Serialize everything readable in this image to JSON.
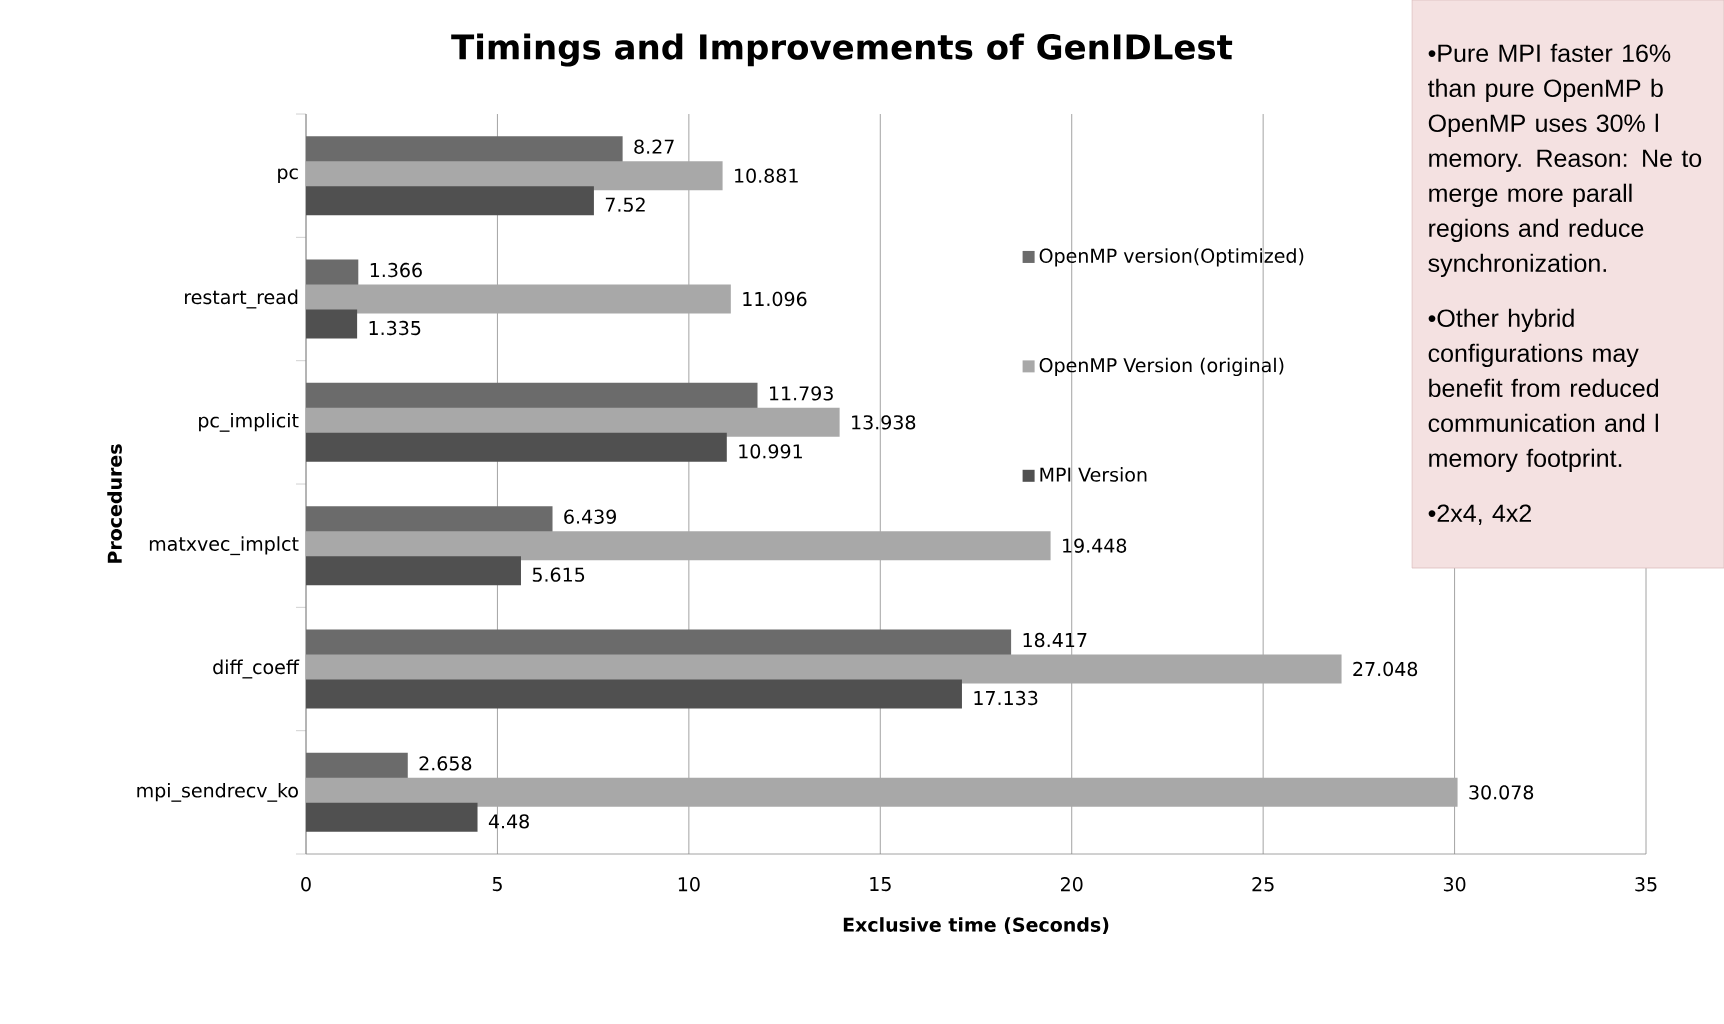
{
  "chart_data": {
    "type": "bar",
    "orientation": "horizontal",
    "title": "Timings and Improvements of GenIDLest",
    "xlabel": "Exclusive time (Seconds)",
    "ylabel": "Procedures",
    "categories": [
      "pc",
      "restart_read",
      "pc_implicit",
      "matxvec_implct",
      "diff_coeff",
      "mpi_sendrecv_ko"
    ],
    "series": [
      {
        "name": "OpenMP version(Optimized)",
        "color": "#6b6b6b",
        "values": [
          8.27,
          1.366,
          11.793,
          6.439,
          18.417,
          2.658
        ]
      },
      {
        "name": "OpenMP Version (original)",
        "color": "#a8a8a8",
        "values": [
          10.881,
          11.096,
          13.938,
          19.448,
          27.048,
          30.078
        ]
      },
      {
        "name": "MPI Version",
        "color": "#505050",
        "values": [
          7.52,
          1.335,
          10.991,
          5.615,
          17.133,
          4.48
        ]
      }
    ],
    "xlim": [
      0,
      35
    ],
    "xticks": [
      0,
      5,
      10,
      15,
      20,
      25,
      30,
      35
    ],
    "grid": "x",
    "legend": "top right",
    "data_labels": true,
    "annotations": [
      "•Pure MPI faster 16% than pure OpenMP b OpenMP uses 30% l memory. Reason: Ne to merge more parall regions and reduce synchronization.",
      "•Other hybrid configurations may benefit from reduced communication and l memory footprint.",
      "•2x4, 4x2"
    ]
  }
}
